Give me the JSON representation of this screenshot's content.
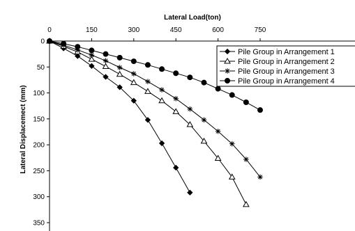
{
  "chart_data": {
    "type": "line",
    "title": "",
    "xlabel": "Lateral Load(ton)",
    "ylabel": "Lateral Displacemect (mm)",
    "x_axis_position": "top",
    "y_axis_inverted": true,
    "xlim": [
      0,
      750
    ],
    "ylim": [
      0,
      350
    ],
    "x_ticks": [
      0,
      150,
      300,
      450,
      600,
      750
    ],
    "y_ticks": [
      0,
      50,
      100,
      150,
      200,
      250,
      300,
      350
    ],
    "grid": false,
    "legend_position": "top-right",
    "series": [
      {
        "name": "Pile Group in Arrangement 1",
        "marker": "diamond",
        "x": [
          0,
          50,
          100,
          150,
          200,
          250,
          300,
          350,
          400,
          450,
          500
        ],
        "y": [
          0,
          14,
          29,
          48,
          69,
          89,
          115,
          152,
          197,
          244,
          292
        ]
      },
      {
        "name": "Pile Group in Arrangement 2",
        "marker": "triangle",
        "x": [
          0,
          50,
          100,
          150,
          200,
          250,
          300,
          350,
          400,
          450,
          500,
          550,
          600,
          650,
          700
        ],
        "y": [
          0,
          10,
          21,
          35,
          49,
          64,
          80,
          97,
          115,
          136,
          161,
          193,
          226,
          262,
          315
        ]
      },
      {
        "name": "Pile Group in Arrangement 3",
        "marker": "star",
        "x": [
          0,
          50,
          100,
          150,
          200,
          250,
          300,
          350,
          400,
          450,
          500,
          550,
          600,
          650,
          700,
          750
        ],
        "y": [
          0,
          8,
          17,
          27,
          38,
          51,
          63,
          78,
          94,
          111,
          131,
          152,
          174,
          198,
          228,
          262
        ]
      },
      {
        "name": "Pile Group in Arrangement 4",
        "marker": "circle",
        "x": [
          0,
          50,
          100,
          150,
          200,
          250,
          300,
          350,
          400,
          450,
          500,
          550,
          600,
          650,
          700,
          750
        ],
        "y": [
          0,
          5,
          11,
          18,
          25,
          32,
          39,
          46,
          54,
          62,
          70,
          80,
          92,
          104,
          118,
          133
        ]
      }
    ]
  }
}
